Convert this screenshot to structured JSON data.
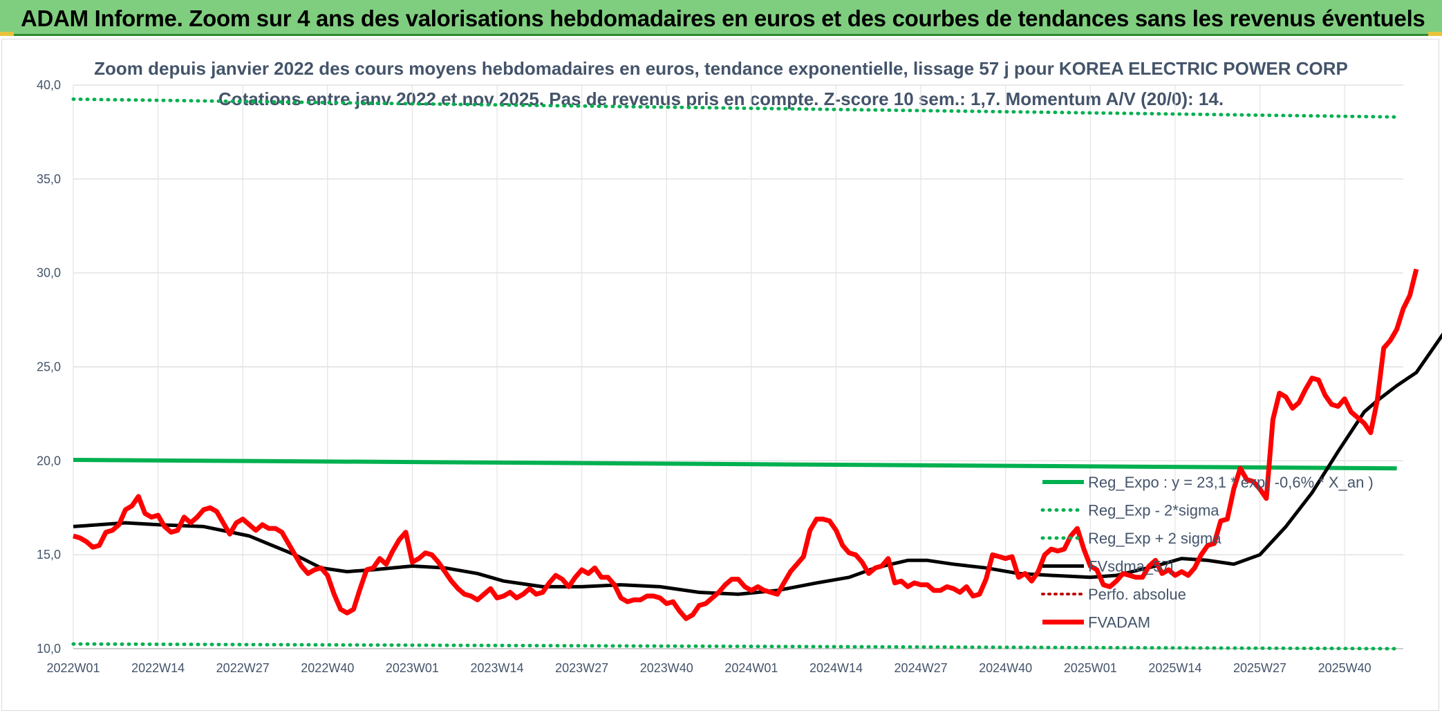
{
  "header": {
    "title": "ADAM Informe. Zoom sur 4 ans des valorisations hebdomadaires en euros et des courbes de tendances sans les revenus éventuels"
  },
  "colors": {
    "banner": "#7fce7f",
    "reg_expo": "#00b050",
    "fvadam": "#ff0000",
    "fvsma": "#000000",
    "perfo": "#c00000",
    "axis_text": "#44546a"
  },
  "chart_data": {
    "type": "line",
    "title": "Zoom depuis janvier 2022 des cours moyens hebdomadaires en euros, tendance exponentielle, lissage 57 j pour KOREA ELECTRIC POWER CORP",
    "subtitle": "Cotations entre janv 2022 et nov 2025. Pas de revenus pris en compte. Z-score 10 sem.: 1,7. Momentum A/V (20/0): 14.",
    "xlabel": "",
    "ylabel": "",
    "ylim": [
      10,
      40
    ],
    "yticks": [
      "10,0",
      "15,0",
      "20,0",
      "25,0",
      "30,0",
      "35,0",
      "40,0"
    ],
    "x_tick_labels": [
      "2022W01",
      "2022W14",
      "2022W27",
      "2022W40",
      "2023W01",
      "2023W14",
      "2023W27",
      "2023W40",
      "2024W01",
      "2024W14",
      "2024W27",
      "2024W40",
      "2025W01",
      "2025W14",
      "2025W27",
      "2025W40"
    ],
    "n_weeks": 204,
    "legend": [
      "Reg_Expo : y = 23,1 * exp( -0,6% *  X_an )",
      "Reg_Exp - 2*sigma",
      "Reg_Exp + 2 sigma",
      "FVsdma_57j",
      "Perfo. absolue",
      "FVADAM"
    ],
    "series": [
      {
        "name": "Reg_Expo : y = 23,1 * exp( -0,6% *  X_an )",
        "style": "solid-green",
        "points": [
          [
            0,
            20.05
          ],
          [
            203,
            19.6
          ]
        ]
      },
      {
        "name": "Reg_Exp - 2*sigma",
        "style": "dotted-green",
        "points": [
          [
            0,
            10.25
          ],
          [
            203,
            10.0
          ]
        ]
      },
      {
        "name": "Reg_Exp + 2 sigma",
        "style": "dotted-green",
        "points": [
          [
            0,
            39.25
          ],
          [
            203,
            38.3
          ]
        ]
      },
      {
        "name": "FVsdma_57j",
        "style": "solid-black",
        "points": [
          [
            0,
            16.5
          ],
          [
            8,
            16.7
          ],
          [
            13,
            16.6
          ],
          [
            20,
            16.5
          ],
          [
            27,
            16.0
          ],
          [
            34,
            15.0
          ],
          [
            38,
            14.3
          ],
          [
            42,
            14.1
          ],
          [
            46,
            14.2
          ],
          [
            52,
            14.4
          ],
          [
            57,
            14.3
          ],
          [
            62,
            14.0
          ],
          [
            66,
            13.6
          ],
          [
            72,
            13.3
          ],
          [
            78,
            13.3
          ],
          [
            84,
            13.4
          ],
          [
            90,
            13.3
          ],
          [
            96,
            13.0
          ],
          [
            102,
            12.9
          ],
          [
            108,
            13.1
          ],
          [
            114,
            13.5
          ],
          [
            119,
            13.8
          ],
          [
            123,
            14.3
          ],
          [
            128,
            14.7
          ],
          [
            131,
            14.7
          ],
          [
            135,
            14.5
          ],
          [
            140,
            14.3
          ],
          [
            145,
            14.0
          ],
          [
            150,
            13.9
          ],
          [
            156,
            13.8
          ],
          [
            160,
            13.9
          ],
          [
            166,
            14.4
          ],
          [
            170,
            14.8
          ],
          [
            174,
            14.7
          ],
          [
            178,
            14.5
          ],
          [
            182,
            15.0
          ],
          [
            186,
            16.5
          ],
          [
            190,
            18.3
          ],
          [
            194,
            20.5
          ],
          [
            198,
            22.6
          ],
          [
            200,
            23.2
          ],
          [
            203,
            24.0
          ],
          [
            206,
            24.7
          ],
          [
            212,
            27.7
          ]
        ]
      },
      {
        "name": "FVADAM",
        "style": "solid-red",
        "points": [
          [
            0,
            16.0
          ],
          [
            1,
            15.9
          ],
          [
            2,
            15.7
          ],
          [
            3,
            15.4
          ],
          [
            4,
            15.5
          ],
          [
            5,
            16.2
          ],
          [
            6,
            16.3
          ],
          [
            7,
            16.6
          ],
          [
            8,
            17.4
          ],
          [
            9,
            17.6
          ],
          [
            10,
            18.1
          ],
          [
            11,
            17.2
          ],
          [
            12,
            17.0
          ],
          [
            13,
            17.1
          ],
          [
            14,
            16.5
          ],
          [
            15,
            16.2
          ],
          [
            16,
            16.3
          ],
          [
            17,
            17.0
          ],
          [
            18,
            16.7
          ],
          [
            19,
            17.0
          ],
          [
            20,
            17.4
          ],
          [
            21,
            17.5
          ],
          [
            22,
            17.3
          ],
          [
            23,
            16.7
          ],
          [
            24,
            16.1
          ],
          [
            25,
            16.7
          ],
          [
            26,
            16.9
          ],
          [
            27,
            16.6
          ],
          [
            28,
            16.3
          ],
          [
            29,
            16.6
          ],
          [
            30,
            16.4
          ],
          [
            31,
            16.4
          ],
          [
            32,
            16.2
          ],
          [
            33,
            15.6
          ],
          [
            34,
            15.0
          ],
          [
            35,
            14.4
          ],
          [
            36,
            14.0
          ],
          [
            37,
            14.2
          ],
          [
            38,
            14.3
          ],
          [
            39,
            13.9
          ],
          [
            40,
            12.9
          ],
          [
            41,
            12.1
          ],
          [
            42,
            11.9
          ],
          [
            43,
            12.1
          ],
          [
            44,
            13.2
          ],
          [
            45,
            14.2
          ],
          [
            46,
            14.3
          ],
          [
            47,
            14.8
          ],
          [
            48,
            14.5
          ],
          [
            49,
            15.2
          ],
          [
            50,
            15.8
          ],
          [
            51,
            16.2
          ],
          [
            52,
            14.6
          ],
          [
            53,
            14.8
          ],
          [
            54,
            15.1
          ],
          [
            55,
            15.0
          ],
          [
            56,
            14.6
          ],
          [
            57,
            14.1
          ],
          [
            58,
            13.6
          ],
          [
            59,
            13.2
          ],
          [
            60,
            12.9
          ],
          [
            61,
            12.8
          ],
          [
            62,
            12.6
          ],
          [
            63,
            12.9
          ],
          [
            64,
            13.2
          ],
          [
            65,
            12.7
          ],
          [
            66,
            12.8
          ],
          [
            67,
            13.0
          ],
          [
            68,
            12.7
          ],
          [
            69,
            12.9
          ],
          [
            70,
            13.2
          ],
          [
            71,
            12.9
          ],
          [
            72,
            13.0
          ],
          [
            73,
            13.5
          ],
          [
            74,
            13.9
          ],
          [
            75,
            13.7
          ],
          [
            76,
            13.3
          ],
          [
            77,
            13.8
          ],
          [
            78,
            14.2
          ],
          [
            79,
            14.0
          ],
          [
            80,
            14.3
          ],
          [
            81,
            13.8
          ],
          [
            82,
            13.8
          ],
          [
            83,
            13.4
          ],
          [
            84,
            12.7
          ],
          [
            85,
            12.5
          ],
          [
            86,
            12.6
          ],
          [
            87,
            12.6
          ],
          [
            88,
            12.8
          ],
          [
            89,
            12.8
          ],
          [
            90,
            12.7
          ],
          [
            91,
            12.4
          ],
          [
            92,
            12.5
          ],
          [
            93,
            12.0
          ],
          [
            94,
            11.6
          ],
          [
            95,
            11.8
          ],
          [
            96,
            12.3
          ],
          [
            97,
            12.4
          ],
          [
            98,
            12.7
          ],
          [
            99,
            13.0
          ],
          [
            100,
            13.4
          ],
          [
            101,
            13.7
          ],
          [
            102,
            13.7
          ],
          [
            103,
            13.3
          ],
          [
            104,
            13.1
          ],
          [
            105,
            13.3
          ],
          [
            106,
            13.1
          ],
          [
            107,
            13.0
          ],
          [
            108,
            12.9
          ],
          [
            109,
            13.5
          ],
          [
            110,
            14.1
          ],
          [
            111,
            14.5
          ],
          [
            112,
            14.9
          ],
          [
            113,
            16.3
          ],
          [
            114,
            16.9
          ],
          [
            115,
            16.9
          ],
          [
            116,
            16.8
          ],
          [
            117,
            16.3
          ],
          [
            118,
            15.5
          ],
          [
            119,
            15.1
          ],
          [
            120,
            15.0
          ],
          [
            121,
            14.6
          ],
          [
            122,
            14.0
          ],
          [
            123,
            14.3
          ],
          [
            124,
            14.4
          ],
          [
            125,
            14.8
          ],
          [
            126,
            13.5
          ],
          [
            127,
            13.6
          ],
          [
            128,
            13.3
          ],
          [
            129,
            13.5
          ],
          [
            130,
            13.4
          ],
          [
            131,
            13.4
          ],
          [
            132,
            13.1
          ],
          [
            133,
            13.1
          ],
          [
            134,
            13.3
          ],
          [
            135,
            13.2
          ],
          [
            136,
            13.0
          ],
          [
            137,
            13.3
          ],
          [
            138,
            12.8
          ],
          [
            139,
            12.9
          ],
          [
            140,
            13.7
          ],
          [
            141,
            15.0
          ],
          [
            142,
            14.9
          ],
          [
            143,
            14.8
          ],
          [
            144,
            14.9
          ],
          [
            145,
            13.8
          ],
          [
            146,
            14.0
          ],
          [
            147,
            13.6
          ],
          [
            148,
            14.1
          ],
          [
            149,
            15.0
          ],
          [
            150,
            15.3
          ],
          [
            151,
            15.2
          ],
          [
            152,
            15.3
          ],
          [
            153,
            16.0
          ],
          [
            154,
            16.4
          ],
          [
            155,
            15.3
          ],
          [
            156,
            14.4
          ],
          [
            157,
            14.2
          ],
          [
            158,
            13.4
          ],
          [
            159,
            13.3
          ],
          [
            160,
            13.6
          ],
          [
            161,
            14.0
          ],
          [
            162,
            13.9
          ],
          [
            163,
            13.8
          ],
          [
            164,
            13.8
          ],
          [
            165,
            14.4
          ],
          [
            166,
            14.7
          ],
          [
            167,
            14.0
          ],
          [
            168,
            14.2
          ],
          [
            169,
            13.9
          ],
          [
            170,
            14.1
          ],
          [
            171,
            13.9
          ],
          [
            172,
            14.3
          ],
          [
            173,
            15.0
          ],
          [
            174,
            15.5
          ],
          [
            175,
            15.6
          ],
          [
            176,
            16.8
          ],
          [
            177,
            16.9
          ],
          [
            178,
            18.5
          ],
          [
            179,
            19.6
          ],
          [
            180,
            19.0
          ],
          [
            181,
            18.9
          ],
          [
            182,
            18.5
          ],
          [
            183,
            18.0
          ],
          [
            184,
            22.2
          ],
          [
            185,
            23.6
          ],
          [
            186,
            23.4
          ],
          [
            187,
            22.8
          ],
          [
            188,
            23.1
          ],
          [
            189,
            23.8
          ],
          [
            190,
            24.4
          ],
          [
            191,
            24.3
          ],
          [
            192,
            23.5
          ],
          [
            193,
            23.0
          ],
          [
            194,
            22.9
          ],
          [
            195,
            23.3
          ],
          [
            196,
            22.6
          ],
          [
            197,
            22.3
          ],
          [
            198,
            22.0
          ],
          [
            199,
            21.5
          ],
          [
            200,
            23.2
          ],
          [
            201,
            26.0
          ],
          [
            202,
            26.4
          ],
          [
            203,
            27.0
          ],
          [
            204,
            28.1
          ],
          [
            205,
            28.8
          ],
          [
            206,
            30.2
          ]
        ]
      }
    ]
  }
}
